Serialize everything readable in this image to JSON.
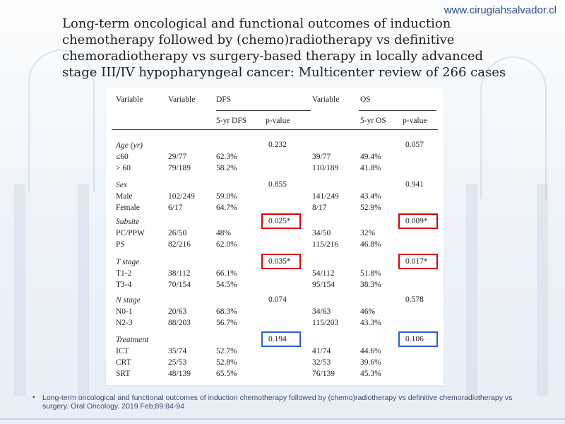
{
  "site": "www.cirugiahsalvador.cl",
  "title": "Long-term oncological and functional outcomes of induction chemotherapy followed by (chemo)radiotherapy vs definitive chemoradiotherapy vs surgery-based therapy in locally advanced stage III/IV hypopharyngeal cancer: Multicenter review of 266 cases",
  "table": {
    "headers": {
      "variable": "Variable",
      "variable2": "Variable",
      "dfs": "DFS",
      "variable3": "Variable",
      "os": "OS",
      "dfs_5yr": "5-yr DFS",
      "dfs_p": "p-value",
      "os_5yr": "5-yr OS",
      "os_p": "p-value"
    },
    "groups": [
      {
        "label": "Age (yr)",
        "dfs_p": "0.232",
        "os_p": "0.057",
        "rows": [
          {
            "name": "≤60",
            "n1": "29/77",
            "dfs": "62.3%",
            "n2": "39/77",
            "os": "49.4%"
          },
          {
            "name": "> 60",
            "n1": "79/189",
            "dfs": "58.2%",
            "n2": "110/189",
            "os": "41.8%"
          }
        ]
      },
      {
        "label": "Sex",
        "dfs_p": "0.855",
        "os_p": "0.941",
        "rows": [
          {
            "name": "Male",
            "n1": "102/249",
            "dfs": "59.0%",
            "n2": "141/249",
            "os": "43.4%"
          },
          {
            "name": "Female",
            "n1": "6/17",
            "dfs": "64.7%",
            "n2": "8/17",
            "os": "52.9%"
          }
        ]
      },
      {
        "label": "Subsite",
        "dfs_p": "0.025*",
        "os_p": "0.009*",
        "rows": [
          {
            "name": "PC/PPW",
            "n1": "26/50",
            "dfs": "48%",
            "n2": "34/50",
            "os": "32%"
          },
          {
            "name": "PS",
            "n1": "82/216",
            "dfs": "62.0%",
            "n2": "115/216",
            "os": "46.8%"
          }
        ]
      },
      {
        "label": "T stage",
        "dfs_p": "0.035*",
        "os_p": "0.017*",
        "rows": [
          {
            "name": "T1-2",
            "n1": "38/112",
            "dfs": "66.1%",
            "n2": "54/112",
            "os": "51.8%"
          },
          {
            "name": "T3-4",
            "n1": "70/154",
            "dfs": "54.5%",
            "n2": "95/154",
            "os": "38.3%"
          }
        ]
      },
      {
        "label": "N stage",
        "dfs_p": "0.074",
        "os_p": "0.578",
        "rows": [
          {
            "name": "N0-1",
            "n1": "20/63",
            "dfs": "68.3%",
            "n2": "34/63",
            "os": "46%"
          },
          {
            "name": "N2-3",
            "n1": "88/203",
            "dfs": "56.7%",
            "n2": "115/203",
            "os": "43.3%"
          }
        ]
      },
      {
        "label": "Treatment",
        "dfs_p": "0.194",
        "os_p": "0.106",
        "rows": [
          {
            "name": "ICT",
            "n1": "35/74",
            "dfs": "52.7%",
            "n2": "41/74",
            "os": "44.6%"
          },
          {
            "name": "CRT",
            "n1": "25/53",
            "dfs": "52.8%",
            "n2": "32/53",
            "os": "39.6%"
          },
          {
            "name": "SRT",
            "n1": "48/139",
            "dfs": "65.5%",
            "n2": "76/139",
            "os": "45.3%"
          }
        ]
      }
    ]
  },
  "highlights": {
    "red_color": "#e00000",
    "blue_color": "#2a5fd6"
  },
  "footnote": "Long-term oncological and functional outcomes of induction chemotherapy followed by (chemo)radiotherapy vs definitive chemoradiotherapy vs surgery. Oral Oncology. 2019 Feb;89:84-94"
}
